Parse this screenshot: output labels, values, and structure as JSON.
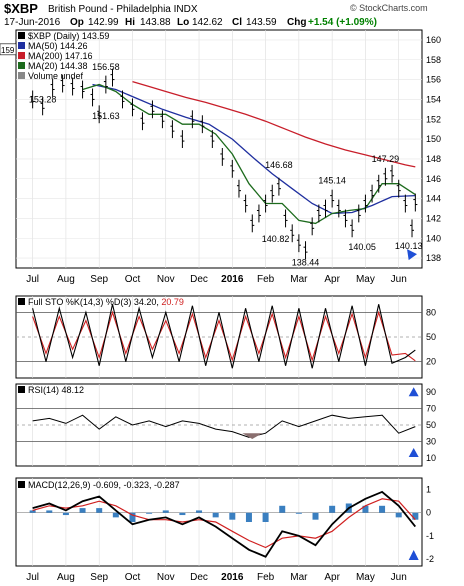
{
  "header": {
    "symbol": "$XBP",
    "name": "British Pound - Philadelphia INDX",
    "date": "17-Jun-2016",
    "op_label": "Op",
    "op": "142.99",
    "hi_label": "Hi",
    "hi": "143.88",
    "lo_label": "Lo",
    "lo": "142.62",
    "cl_label": "Cl",
    "cl": "143.59",
    "chg_label": "Chg",
    "chg": "+1.54 (+1.09%)",
    "watermark": "© StockCharts.com",
    "up_color": "#008000"
  },
  "chart_data": [
    {
      "type": "line",
      "panel": "price",
      "legend": [
        {
          "text": "$XBP (Daily) 143.59",
          "color": "#000000"
        },
        {
          "text": "MA(50) 144.26",
          "color": "#1f2f9f"
        },
        {
          "text": "MA(200) 147.16",
          "color": "#c81e2a"
        },
        {
          "text": "MA(20) 144.38",
          "color": "#1d6b1d"
        },
        {
          "text": "Volume undef",
          "color": "#888888"
        }
      ],
      "y_ticks": [
        "160",
        "158",
        "156",
        "154",
        "152",
        "150",
        "148",
        "146",
        "144",
        "142",
        "140",
        "138"
      ],
      "ylim": [
        137,
        161
      ],
      "price_tag": "159",
      "x_month_labels": [
        "Jul",
        "Aug",
        "Sep",
        "Oct",
        "Nov",
        "Dec",
        "2016",
        "Feb",
        "Mar",
        "Apr",
        "May",
        "Jun"
      ],
      "annotations": [
        {
          "text": "153.28",
          "x": 0.3,
          "y": 153.28
        },
        {
          "text": "156.58",
          "x": 2.2,
          "y": 156.58
        },
        {
          "text": "151.63",
          "x": 2.2,
          "y": 151.63
        },
        {
          "text": "146.68",
          "x": 7.4,
          "y": 146.68
        },
        {
          "text": "140.82",
          "x": 7.3,
          "y": 140.82
        },
        {
          "text": "138.44",
          "x": 8.2,
          "y": 138.44
        },
        {
          "text": "145.14",
          "x": 9.0,
          "y": 145.14
        },
        {
          "text": "140.05",
          "x": 9.9,
          "y": 140.05
        },
        {
          "text": "147.29",
          "x": 10.6,
          "y": 147.29
        },
        {
          "text": "140.13",
          "x": 11.3,
          "y": 140.13
        }
      ],
      "series": [
        {
          "name": "$XBP (Daily)",
          "color": "#000000",
          "style": "bars",
          "x": [
            0,
            0.3,
            0.6,
            0.9,
            1.2,
            1.5,
            1.8,
            2.0,
            2.2,
            2.4,
            2.7,
            3.0,
            3.3,
            3.6,
            3.9,
            4.2,
            4.5,
            4.8,
            5.1,
            5.4,
            5.7,
            6.0,
            6.2,
            6.4,
            6.6,
            6.8,
            7.0,
            7.2,
            7.4,
            7.6,
            7.8,
            8.0,
            8.2,
            8.4,
            8.6,
            8.8,
            9.0,
            9.2,
            9.4,
            9.6,
            9.8,
            10.0,
            10.2,
            10.4,
            10.6,
            10.8,
            11.0,
            11.2,
            11.4,
            11.5
          ],
          "values": [
            154.0,
            153.3,
            155.2,
            155.6,
            155.3,
            155.0,
            154.2,
            152.5,
            155.5,
            156.2,
            154.0,
            153.2,
            151.8,
            153.0,
            152.0,
            151.0,
            150.0,
            152.0,
            151.5,
            150.0,
            148.2,
            147.0,
            145.0,
            143.5,
            141.5,
            142.5,
            143.5,
            144.5,
            145.2,
            142.0,
            140.5,
            139.5,
            138.8,
            141.2,
            142.5,
            143.0,
            144.0,
            143.0,
            142.0,
            141.0,
            142.5,
            143.5,
            144.5,
            145.5,
            146.2,
            146.5,
            145.0,
            143.5,
            141.0,
            143.6
          ]
        },
        {
          "name": "MA(50)",
          "color": "#1f2f9f",
          "x": [
            1.8,
            2.5,
            3.2,
            3.9,
            4.6,
            5.3,
            6.0,
            6.6,
            7.2,
            7.8,
            8.4,
            9.0,
            9.6,
            10.2,
            10.8,
            11.5
          ],
          "values": [
            155.5,
            155.0,
            154.0,
            153.0,
            152.2,
            151.5,
            150.0,
            148.2,
            146.5,
            145.0,
            143.5,
            142.5,
            142.6,
            143.3,
            144.2,
            144.3
          ]
        },
        {
          "name": "MA(200)",
          "color": "#c81e2a",
          "x": [
            3.0,
            3.5,
            4.0,
            4.6,
            5.2,
            5.8,
            6.4,
            7.0,
            7.6,
            8.2,
            8.8,
            9.4,
            10.0,
            10.6,
            11.2,
            11.5
          ],
          "values": [
            155.8,
            155.3,
            154.8,
            154.2,
            153.7,
            153.1,
            152.5,
            151.8,
            151.0,
            150.2,
            149.5,
            148.9,
            148.4,
            147.9,
            147.4,
            147.2
          ]
        },
        {
          "name": "MA(20)",
          "color": "#1d6b1d",
          "x": [
            1.5,
            2.0,
            2.5,
            3.0,
            3.5,
            4.0,
            4.5,
            5.0,
            5.5,
            6.0,
            6.5,
            7.0,
            7.5,
            8.0,
            8.5,
            9.0,
            9.5,
            10.0,
            10.5,
            11.0,
            11.5
          ],
          "values": [
            155.0,
            155.5,
            154.8,
            153.5,
            152.5,
            152.5,
            151.5,
            151.5,
            150.5,
            148.5,
            145.5,
            143.5,
            143.5,
            141.8,
            141.5,
            142.5,
            142.8,
            143.0,
            145.5,
            145.5,
            144.4
          ]
        }
      ]
    },
    {
      "type": "line",
      "panel": "stochastic",
      "legend": [
        {
          "text": "Full STO %K(14,3) %D(3) 34.20, 20.79",
          "color": "#000000"
        }
      ],
      "title_prefix": "Full STO %K(14,3) %D(3)",
      "value_k": "34.20",
      "value_d": "20.79",
      "ylim": [
        0,
        100
      ],
      "y_ticks": [
        "80",
        "50",
        "20"
      ],
      "reference_lines": [
        80,
        50,
        20
      ],
      "series": [
        {
          "name": "%K",
          "color": "#000000",
          "x": [
            0,
            0.4,
            0.8,
            1.2,
            1.6,
            2.0,
            2.4,
            2.8,
            3.2,
            3.6,
            4.0,
            4.4,
            4.8,
            5.2,
            5.6,
            6.0,
            6.4,
            6.8,
            7.2,
            7.6,
            8.0,
            8.4,
            8.8,
            9.2,
            9.6,
            10.0,
            10.4,
            10.8,
            11.2,
            11.5
          ],
          "values": [
            85,
            20,
            85,
            25,
            80,
            15,
            90,
            20,
            85,
            25,
            80,
            20,
            88,
            15,
            80,
            12,
            85,
            20,
            88,
            15,
            85,
            12,
            85,
            20,
            88,
            15,
            90,
            18,
            25,
            34
          ]
        },
        {
          "name": "%D",
          "color": "#d02020",
          "x": [
            0,
            0.4,
            0.8,
            1.2,
            1.6,
            2.0,
            2.4,
            2.8,
            3.2,
            3.6,
            4.0,
            4.4,
            4.8,
            5.2,
            5.6,
            6.0,
            6.4,
            6.8,
            7.2,
            7.6,
            8.0,
            8.4,
            8.8,
            9.2,
            9.6,
            10.0,
            10.4,
            10.8,
            11.2,
            11.5
          ],
          "values": [
            75,
            30,
            75,
            35,
            70,
            25,
            80,
            30,
            75,
            35,
            70,
            30,
            78,
            25,
            70,
            22,
            75,
            30,
            78,
            25,
            75,
            22,
            75,
            30,
            78,
            25,
            80,
            28,
            30,
            21
          ]
        }
      ]
    },
    {
      "type": "line",
      "panel": "rsi",
      "legend": [
        {
          "text": "RSI(14) 48.12",
          "color": "#000000"
        }
      ],
      "ylim": [
        0,
        100
      ],
      "y_ticks": [
        "90",
        "70",
        "50",
        "30",
        "10"
      ],
      "reference_lines": [
        70,
        30
      ],
      "series": [
        {
          "name": "RSI(14)",
          "color": "#000000",
          "x": [
            0,
            0.5,
            1.0,
            1.5,
            2.0,
            2.5,
            3.0,
            3.5,
            4.0,
            4.5,
            5.0,
            5.5,
            6.0,
            6.5,
            7.0,
            7.5,
            8.0,
            8.5,
            9.0,
            9.5,
            10.0,
            10.5,
            11.0,
            11.5
          ],
          "values": [
            55,
            58,
            52,
            62,
            45,
            60,
            50,
            55,
            48,
            55,
            52,
            45,
            42,
            35,
            40,
            55,
            48,
            55,
            62,
            58,
            60,
            62,
            40,
            48
          ]
        }
      ]
    },
    {
      "type": "bar",
      "panel": "macd",
      "legend": [
        {
          "text": "MACD(12,26,9) -0.609, -0.323, -0.287",
          "color": "#000000"
        }
      ],
      "ylim": [
        -2.3,
        1.5
      ],
      "y_ticks": [
        "1",
        "0",
        "-1",
        "-2"
      ],
      "series": [
        {
          "name": "MACD",
          "color": "#000000",
          "x": [
            0,
            0.5,
            1.0,
            1.5,
            2.0,
            2.5,
            3.0,
            3.5,
            4.0,
            4.5,
            5.0,
            5.5,
            6.0,
            6.5,
            7.0,
            7.5,
            8.0,
            8.5,
            9.0,
            9.5,
            10.0,
            10.5,
            11.0,
            11.5
          ],
          "values": [
            0.2,
            0.4,
            0.1,
            0.5,
            0.7,
            0.1,
            -0.5,
            -0.3,
            -0.2,
            -0.5,
            -0.2,
            -0.6,
            -1.1,
            -1.6,
            -1.9,
            -0.8,
            -1.0,
            -1.4,
            -0.5,
            0.2,
            0.6,
            0.9,
            0.3,
            -0.6
          ]
        },
        {
          "name": "Signal",
          "color": "#d02020",
          "x": [
            0,
            0.5,
            1.0,
            1.5,
            2.0,
            2.5,
            3.0,
            3.5,
            4.0,
            4.5,
            5.0,
            5.5,
            6.0,
            6.5,
            7.0,
            7.5,
            8.0,
            8.5,
            9.0,
            9.5,
            10.0,
            10.5,
            11.0,
            11.5
          ],
          "values": [
            0.1,
            0.3,
            0.2,
            0.3,
            0.5,
            0.3,
            -0.1,
            -0.3,
            -0.3,
            -0.4,
            -0.3,
            -0.4,
            -0.8,
            -1.2,
            -1.5,
            -1.1,
            -1.0,
            -1.1,
            -0.8,
            -0.2,
            0.3,
            0.6,
            0.5,
            -0.3
          ]
        },
        {
          "name": "Histogram",
          "color": "#3a7fc0",
          "x": [
            0,
            0.5,
            1.0,
            1.5,
            2.0,
            2.5,
            3.0,
            3.5,
            4.0,
            4.5,
            5.0,
            5.5,
            6.0,
            6.5,
            7.0,
            7.5,
            8.0,
            8.5,
            9.0,
            9.5,
            10.0,
            10.5,
            11.0,
            11.5
          ],
          "values": [
            0.1,
            0.1,
            -0.1,
            0.2,
            0.2,
            -0.2,
            -0.4,
            0.0,
            0.1,
            -0.1,
            0.1,
            -0.2,
            -0.3,
            -0.4,
            -0.4,
            0.3,
            0.0,
            -0.3,
            0.3,
            0.4,
            0.3,
            0.3,
            -0.2,
            -0.3
          ]
        }
      ]
    }
  ]
}
